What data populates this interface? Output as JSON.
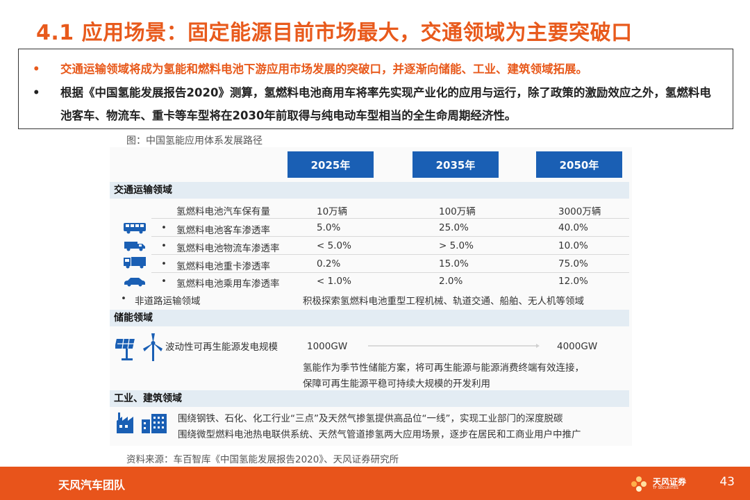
{
  "title": "4.1 应用场景：固定能源目前市场最大，交通领域为主要突破口",
  "bullets": [
    {
      "text": "交通运输领域将成为氢能和燃料电池下游应用市场发展的突破口，并逐渐向储能、工业、建筑领域拓展。"
    },
    {
      "text": "根据《中国氢能发展报告2020》测算，氢燃料电池商用车将率先实现产业化的应用与运行，除了政策的激励效应之外，氢燃料电池客车、物流车、重卡等车型将在2030年前取得与纯电动车型相当的全生命周期经济性。"
    }
  ],
  "figure": {
    "caption": "图：中国氢能应用体系发展路径",
    "years": [
      "2025年",
      "2035年",
      "2050年"
    ],
    "transport": {
      "heading": "交通运输领域",
      "fleet": {
        "label": "氢燃料电池汽车保有量",
        "v2025": "10万辆",
        "v2035": "100万辆",
        "v2050": "3000万辆"
      },
      "rows": [
        {
          "icon": "bus-icon",
          "label": "氢燃料电池客车渗透率",
          "v2025": "5.0%",
          "v2035": "25.0%",
          "v2050": "40.0%"
        },
        {
          "icon": "van-icon",
          "label": "氢燃料电池物流车渗透率",
          "v2025": "< 5.0%",
          "v2035": "> 5.0%",
          "v2050": "10.0%"
        },
        {
          "icon": "truck-icon",
          "label": "氢燃料电池重卡渗透率",
          "v2025": "0.2%",
          "v2035": "15.0%",
          "v2050": "75.0%"
        },
        {
          "icon": "car-icon",
          "label": "氢燃料电池乘用车渗透率",
          "v2025": "< 1.0%",
          "v2035": "2.0%",
          "v2050": "12.0%"
        }
      ],
      "nonroad": {
        "label": "非道路运输领域",
        "text": "积极探索氢燃料电池重型工程机械、轨道交通、船舶、无人机等领域"
      }
    },
    "storage": {
      "heading": "储能领域",
      "label": "波动性可再生能源发电规模",
      "v2025": "1000GW",
      "v2050": "4000GW",
      "note_line1": "氢能作为季节性储能方案，将可再生能源与能源消费终端有效连接，",
      "note_line2": "保障可再生能源平稳可持续大规模的开发利用"
    },
    "industry": {
      "heading": "工业、建筑领域",
      "line1": "围绕钢铁、石化、化工行业“三点”及天然气掺氢提供高品位“一线”，实现工业部门的深度脱碳",
      "line2": "围绕微型燃料电池热电联供系统、天然气管道掺氢两大应用场景，逐步在居民和工商业用户中推广"
    }
  },
  "source": "资料来源：车百智库《中国氢能发展报告2020》、天风证券研究所",
  "footer": {
    "team": "天风汽车团队",
    "logo_text": "天风证券",
    "logo_sub": "TF SECURITIES",
    "page": "43"
  },
  "colors": {
    "accent": "#e85a1c",
    "footer": "#e8541b",
    "year_tab": "#1a5fb4",
    "section_bg": "#e3ecf3",
    "icon_blue": "#1a5fb4"
  }
}
